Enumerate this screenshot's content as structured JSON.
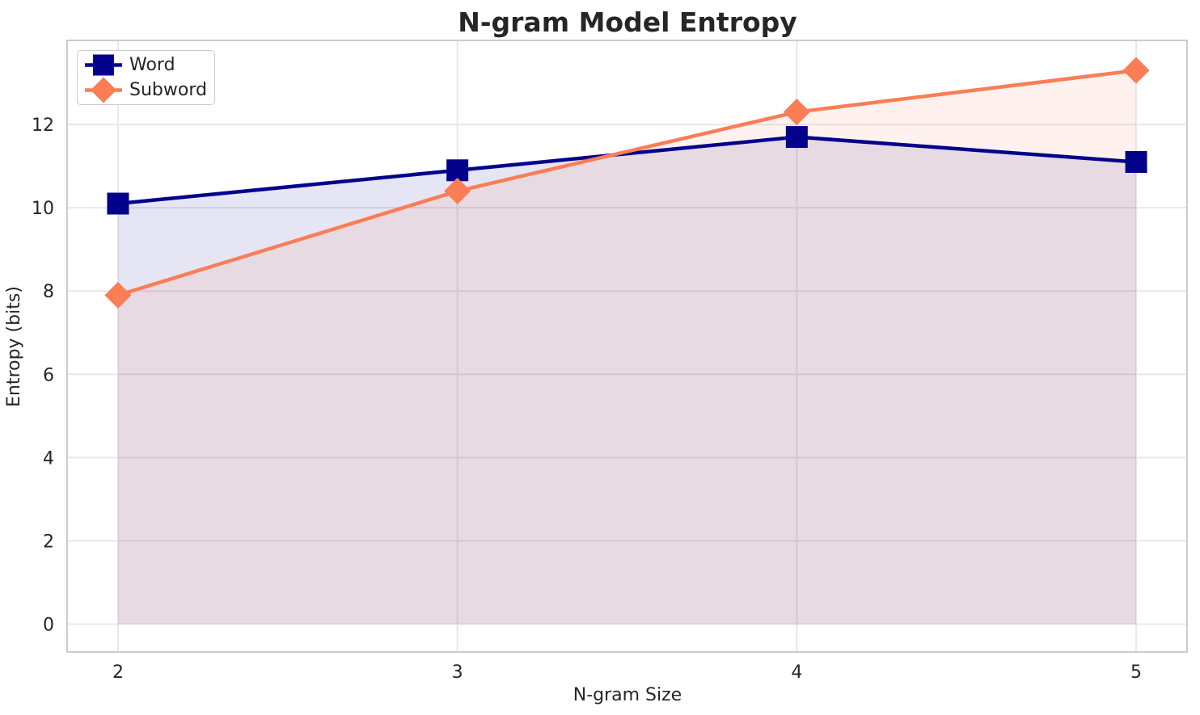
{
  "chart_data": {
    "type": "line",
    "title": "N-gram Model Entropy",
    "xlabel": "N-gram Size",
    "ylabel": "Entropy (bits)",
    "x": [
      2,
      3,
      4,
      5
    ],
    "xticks": [
      "2",
      "3",
      "4",
      "5"
    ],
    "yticks": [
      0,
      2,
      4,
      6,
      8,
      10,
      12
    ],
    "xlim": [
      1.85,
      5.15
    ],
    "ylim": [
      -0.67,
      14.02
    ],
    "grid": true,
    "fill_to_zero": true,
    "fill_opacity": 0.1,
    "legend_location": "upper left",
    "series": [
      {
        "name": "Word",
        "values": [
          10.1,
          10.9,
          11.7,
          11.1
        ],
        "color": "#02028C",
        "marker": "square"
      },
      {
        "name": "Subword",
        "values": [
          7.9,
          10.4,
          12.3,
          13.3
        ],
        "color": "#FB7D55",
        "marker": "diamond"
      }
    ],
    "style": {
      "background": "#ffffff",
      "grid_color": "#e8e8e8",
      "spine_color": "#cccccc",
      "text_color": "#262626"
    }
  }
}
